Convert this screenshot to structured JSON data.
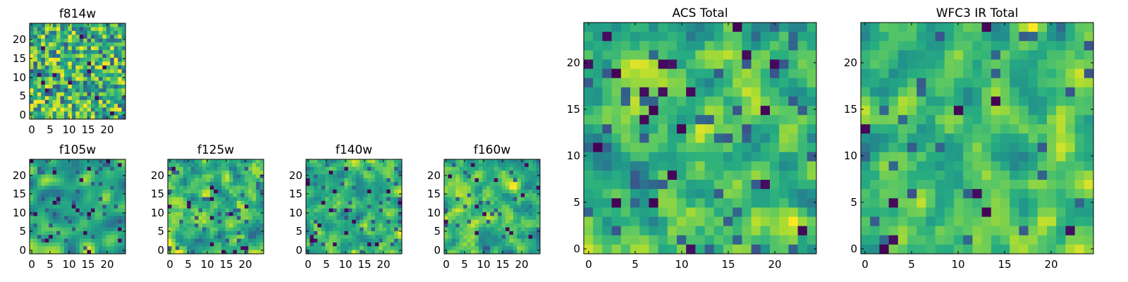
{
  "chart_data": [
    {
      "type": "heatmap",
      "title": "f814w",
      "x_ticks": [
        "0",
        "5",
        "10",
        "15",
        "20"
      ],
      "y_ticks": [
        "0",
        "5",
        "10",
        "15",
        "20"
      ],
      "grid_size": 25,
      "colormap": "viridis",
      "grid": false
    },
    {
      "type": "heatmap",
      "title": "f105w",
      "x_ticks": [
        "0",
        "5",
        "10",
        "15",
        "20"
      ],
      "y_ticks": [
        "0",
        "5",
        "10",
        "15",
        "20"
      ],
      "grid_size": 25,
      "colormap": "viridis",
      "grid": false
    },
    {
      "type": "heatmap",
      "title": "f125w",
      "x_ticks": [
        "0",
        "5",
        "10",
        "15",
        "20"
      ],
      "y_ticks": [
        "0",
        "5",
        "10",
        "15",
        "20"
      ],
      "grid_size": 25,
      "colormap": "viridis",
      "grid": false
    },
    {
      "type": "heatmap",
      "title": "f140w",
      "x_ticks": [
        "0",
        "5",
        "10",
        "15",
        "20"
      ],
      "y_ticks": [
        "0",
        "5",
        "10",
        "15",
        "20"
      ],
      "grid_size": 25,
      "colormap": "viridis",
      "grid": false
    },
    {
      "type": "heatmap",
      "title": "f160w",
      "x_ticks": [
        "0",
        "5",
        "10",
        "15",
        "20"
      ],
      "y_ticks": [
        "0",
        "5",
        "10",
        "15",
        "20"
      ],
      "grid_size": 25,
      "colormap": "viridis",
      "grid": false
    },
    {
      "type": "heatmap",
      "title": "ACS Total",
      "x_ticks": [
        "0",
        "5",
        "10",
        "15",
        "20"
      ],
      "y_ticks": [
        "0",
        "5",
        "10",
        "15",
        "20"
      ],
      "grid_size": 25,
      "colormap": "viridis",
      "grid": false
    },
    {
      "type": "heatmap",
      "title": "WFC3 IR Total",
      "x_ticks": [
        "0",
        "5",
        "10",
        "15",
        "20"
      ],
      "y_ticks": [
        "0",
        "5",
        "10",
        "15",
        "20"
      ],
      "grid_size": 25,
      "colormap": "viridis",
      "grid": false
    }
  ],
  "colors": {
    "dark": "#440154",
    "blue": "#3b528b",
    "teal": "#21918c",
    "green": "#5ec962",
    "yellow": "#fde725",
    "axis": "#000000",
    "background": "#ffffff"
  }
}
